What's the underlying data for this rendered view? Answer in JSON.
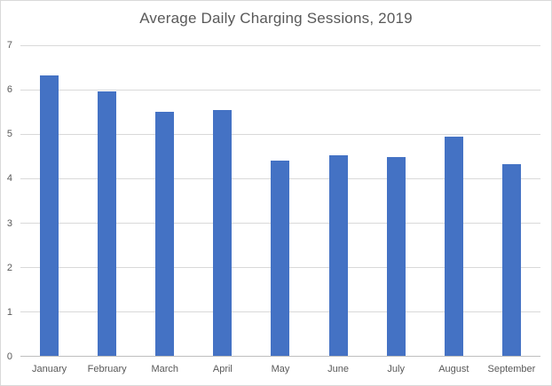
{
  "chart_data": {
    "type": "bar",
    "title": "Average Daily Charging Sessions, 2019",
    "categories": [
      "January",
      "February",
      "March",
      "April",
      "May",
      "June",
      "July",
      "August",
      "September"
    ],
    "values": [
      6.33,
      5.96,
      5.51,
      5.54,
      4.4,
      4.53,
      4.49,
      4.95,
      4.33
    ],
    "xlabel": "",
    "ylabel": "",
    "ylim": [
      0,
      7
    ],
    "ytick_interval": 1,
    "yticks": [
      0,
      1,
      2,
      3,
      4,
      5,
      6,
      7
    ],
    "grid": true,
    "legend": false,
    "bar_color": "#4472C4",
    "gridline_color": "#D9D9D9",
    "axis_line_color": "#BFBFBF",
    "text_color": "#595959",
    "background_color": "#FFFFFF",
    "border_color": "#D9D9D9"
  }
}
